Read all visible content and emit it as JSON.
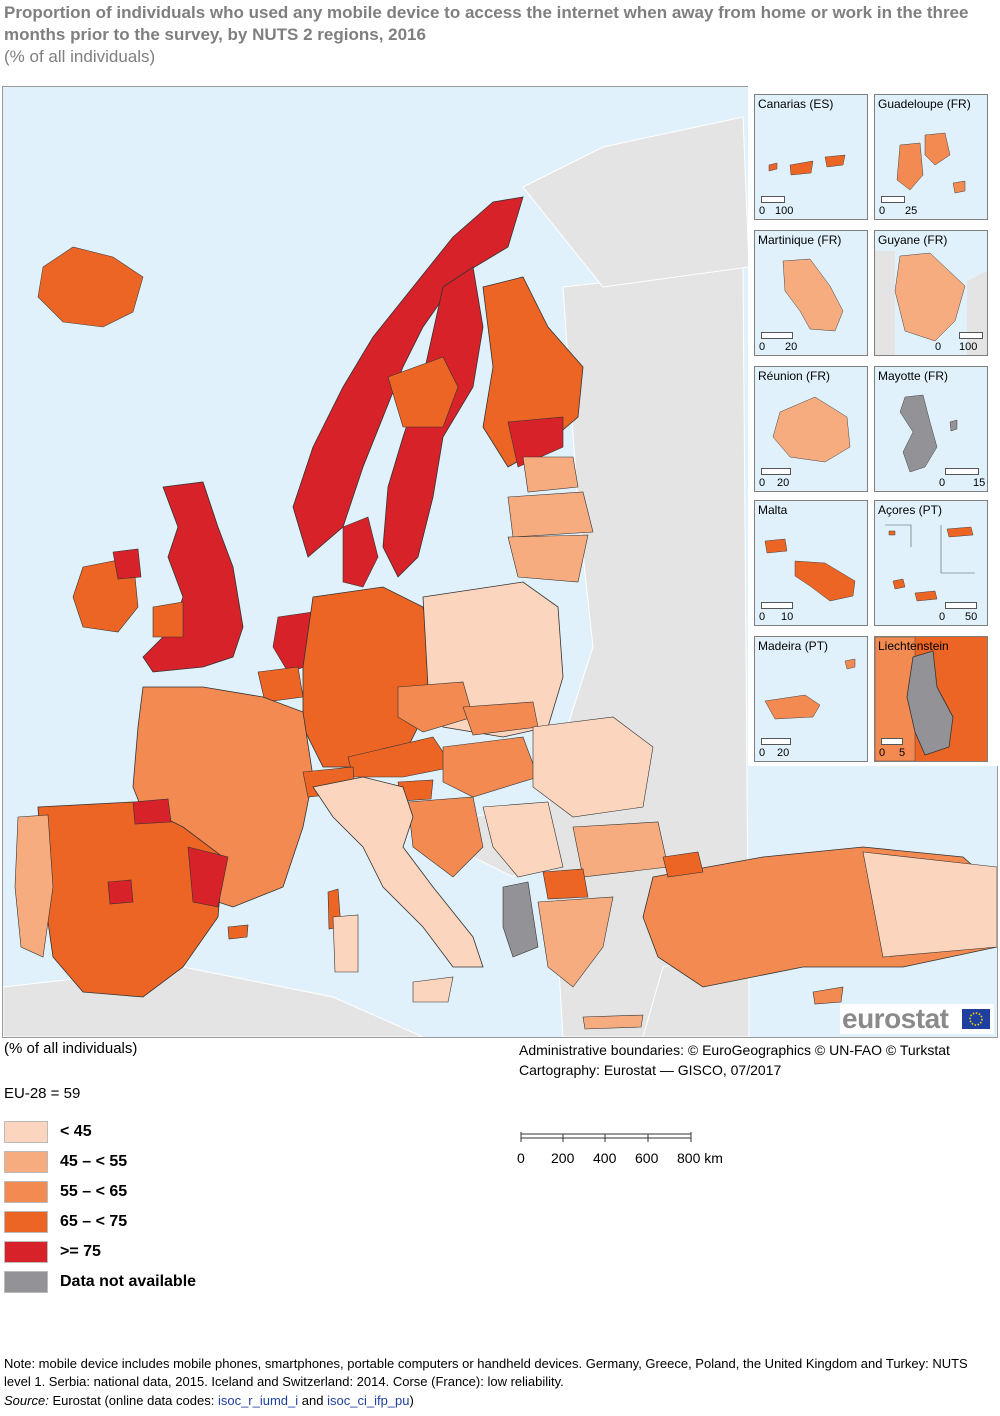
{
  "header": {
    "title": "Proportion of individuals who used any mobile device to access the internet when away from home or work in the three months prior to the survey, by NUTS 2 regions, 2016",
    "subtitle": "(% of all individuals)"
  },
  "colors": {
    "sea": "#e1f1fb",
    "non_eu_land": "#e4e4e4",
    "lt45": "#fbd5bd",
    "c45_55": "#f7ac80",
    "c55_65": "#f38a51",
    "c65_75": "#ec6525",
    "ge75": "#d7222a",
    "na": "#929297"
  },
  "insets": [
    {
      "name": "Canarias (ES)",
      "scale_min": "0",
      "scale_max": "100"
    },
    {
      "name": "Guadeloupe (FR)",
      "scale_min": "0",
      "scale_max": "25"
    },
    {
      "name": "Martinique (FR)",
      "scale_min": "0",
      "scale_max": "20"
    },
    {
      "name": "Guyane (FR)",
      "scale_min": "0",
      "scale_max": "100"
    },
    {
      "name": "Réunion (FR)",
      "scale_min": "0",
      "scale_max": "20"
    },
    {
      "name": "Mayotte (FR)",
      "scale_min": "0",
      "scale_max": "15"
    },
    {
      "name": "Malta",
      "scale_min": "0",
      "scale_max": "10"
    },
    {
      "name": "Açores (PT)",
      "scale_min": "0",
      "scale_max": "50"
    },
    {
      "name": "Madeira (PT)",
      "scale_min": "0",
      "scale_max": "20"
    },
    {
      "name": "Liechtenstein",
      "scale_min": "0",
      "scale_max": "5"
    }
  ],
  "logo": {
    "text": "eurostat"
  },
  "map_footer": {
    "unit": "(% of all individuals)",
    "boundaries": "Administrative boundaries: © EuroGeographics © UN-FAO © Turkstat",
    "cartography": "Cartography: Eurostat — GISCO, 07/2017"
  },
  "eu_average": "EU-28 = 59",
  "legend": [
    {
      "label": "< 45",
      "color_key": "lt45"
    },
    {
      "label": "45 – < 55",
      "color_key": "c45_55"
    },
    {
      "label": "55 – < 65",
      "color_key": "c55_65"
    },
    {
      "label": "65 – < 75",
      "color_key": "c65_75"
    },
    {
      "label": ">= 75",
      "color_key": "ge75"
    },
    {
      "label": "Data not available",
      "color_key": "na"
    }
  ],
  "scale": {
    "ticks": [
      "0",
      "200",
      "400",
      "600",
      "800 km"
    ]
  },
  "note": "Note: mobile device includes mobile phones, smartphones, portable computers or handheld devices. Germany, Greece, Poland, the United Kingdom and Turkey: NUTS level 1. Serbia: national data, 2015. Iceland and Switzerland: 2014. Corse (France): low reliability.",
  "source": {
    "label": "Source:",
    "text1": "Eurostat (online data codes:",
    "code1": "isoc_r_iumd_i",
    "and": "and",
    "code2": "isoc_ci_ifp_pu",
    "close": ")"
  }
}
